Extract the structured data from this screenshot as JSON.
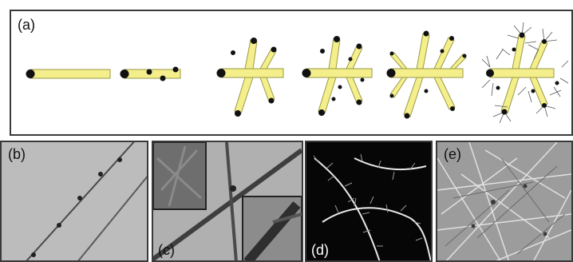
{
  "figure": {
    "panel_labels": {
      "a": "(a)",
      "b": "(b)",
      "c": "(c)",
      "d": "(d)",
      "e": "(e)"
    }
  }
}
